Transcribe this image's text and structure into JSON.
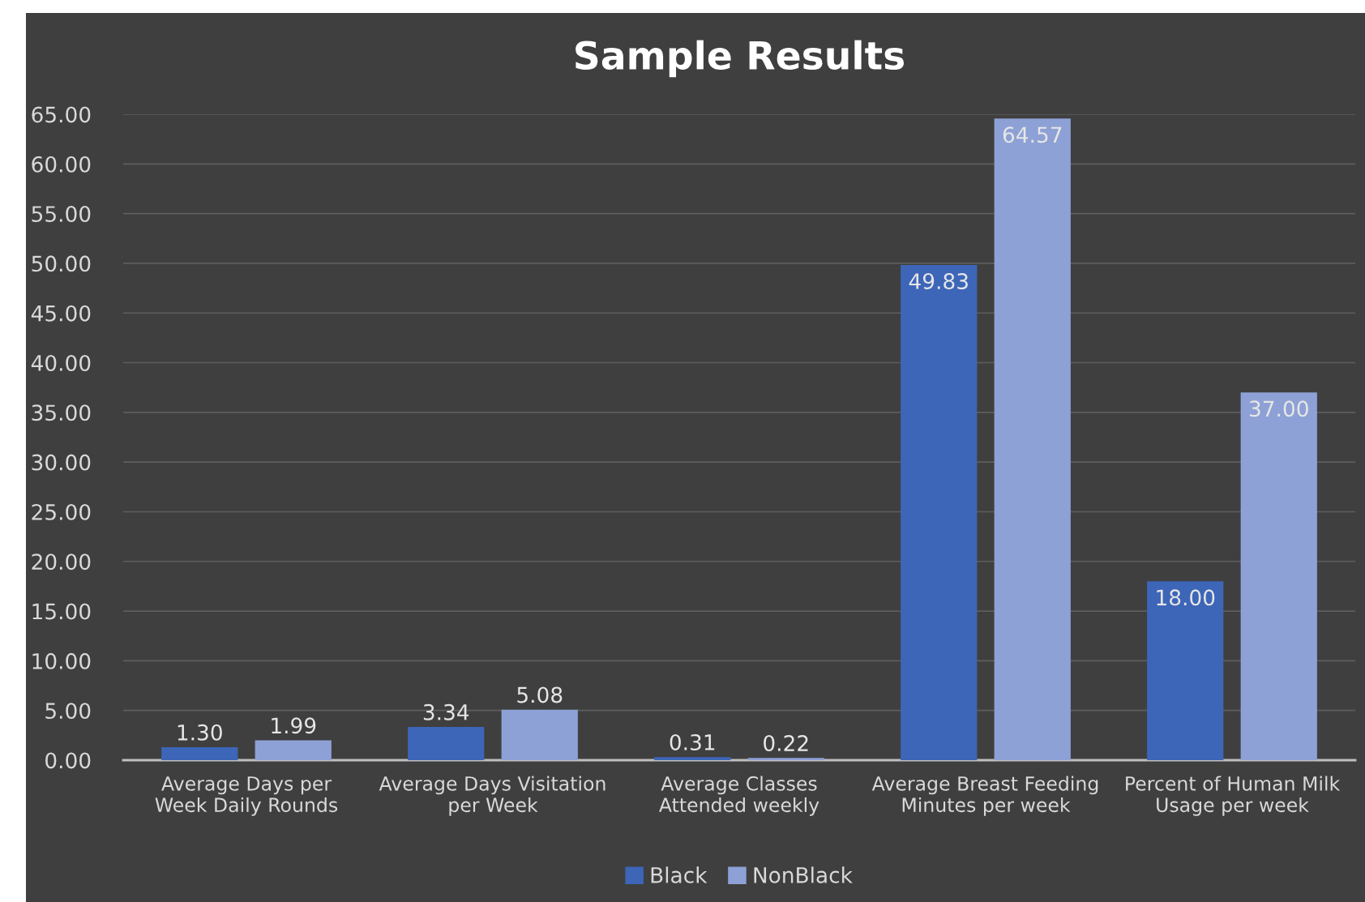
{
  "chart_data": {
    "type": "bar",
    "title": "Sample Results",
    "categories": [
      "Average Days per\nWeek Daily Rounds",
      "Average Days Visitation\nper Week",
      "Average Classes\nAttended weekly",
      "Average Breast Feeding\nMinutes per week",
      "Percent of Human Milk\nUsage per week"
    ],
    "series": [
      {
        "name": "Black",
        "color": "#3d66b8",
        "values": [
          1.3,
          3.34,
          0.31,
          49.83,
          18.0
        ],
        "value_labels": [
          "1.30",
          "3.34",
          "0.31",
          "49.83",
          "18.00"
        ]
      },
      {
        "name": "NonBlack",
        "color": "#8ea1d6",
        "values": [
          1.99,
          5.08,
          0.22,
          64.57,
          37.0
        ],
        "value_labels": [
          "1.99",
          "5.08",
          "0.22",
          "64.57",
          "37.00"
        ]
      }
    ],
    "ylim": [
      0,
      65
    ],
    "yticks": [
      {
        "value": 0,
        "label": "0.00"
      },
      {
        "value": 5,
        "label": "5.00"
      },
      {
        "value": 10,
        "label": "10.00"
      },
      {
        "value": 15,
        "label": "15.00"
      },
      {
        "value": 20,
        "label": "20.00"
      },
      {
        "value": 25,
        "label": "25.00"
      },
      {
        "value": 30,
        "label": "30.00"
      },
      {
        "value": 35,
        "label": "35.00"
      },
      {
        "value": 40,
        "label": "40.00"
      },
      {
        "value": 45,
        "label": "45.00"
      },
      {
        "value": 50,
        "label": "50.00"
      },
      {
        "value": 55,
        "label": "55.00"
      },
      {
        "value": 60,
        "label": "60.00"
      },
      {
        "value": 65,
        "label": "65.00"
      }
    ],
    "grid": "y",
    "legend": "bottom"
  }
}
